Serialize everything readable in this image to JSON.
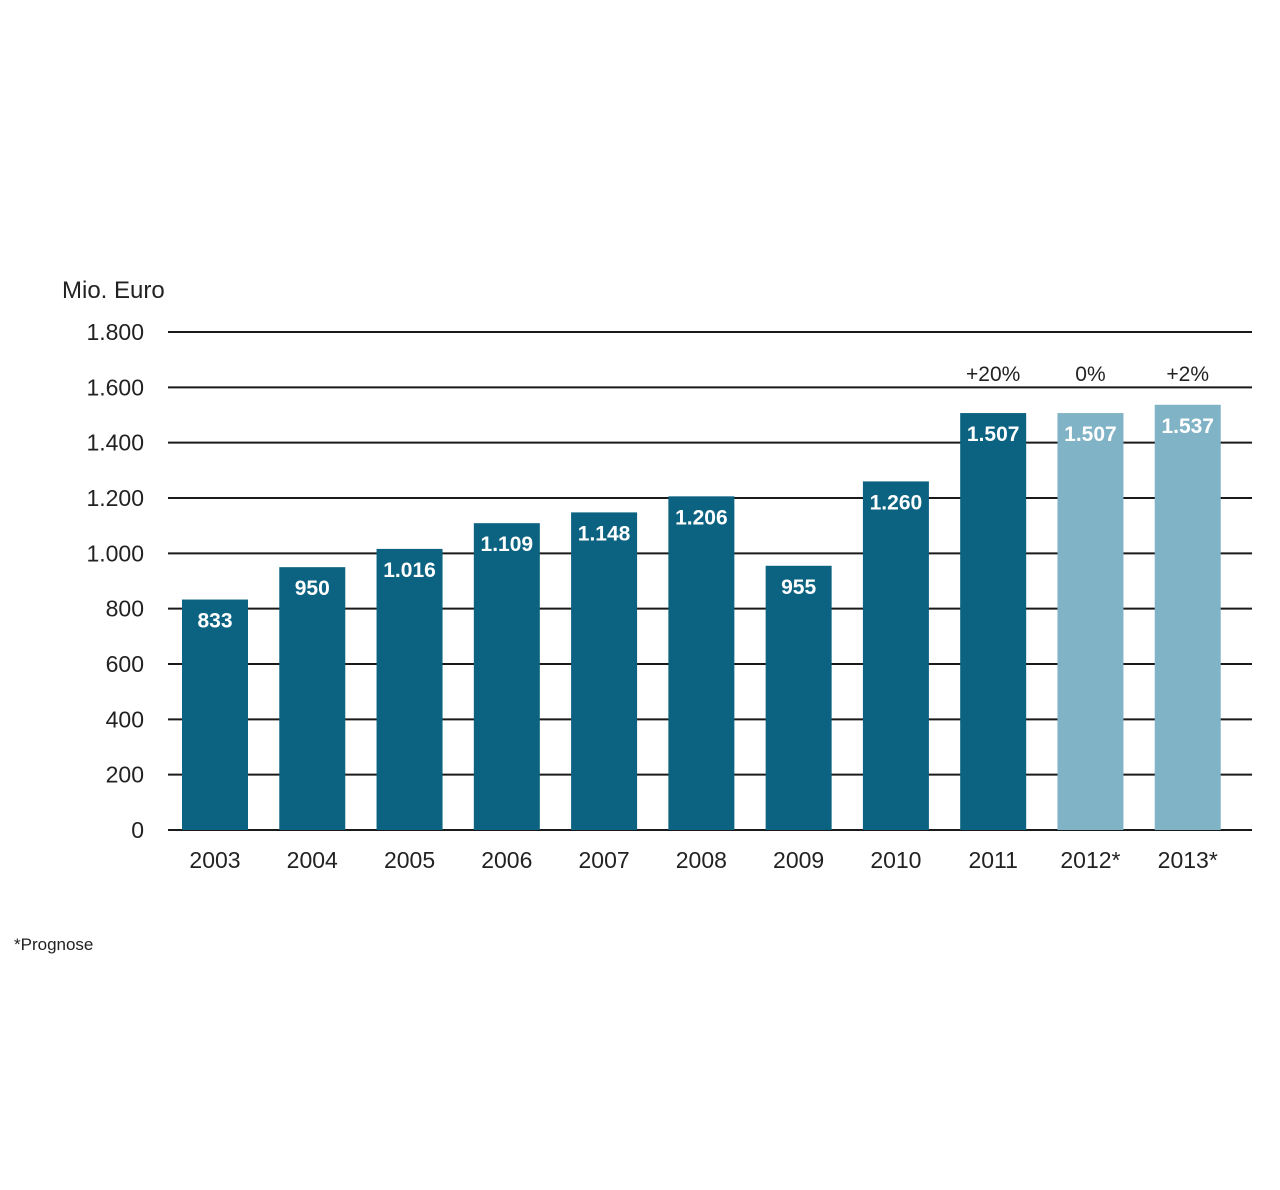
{
  "chart_data": {
    "type": "bar",
    "ylabel": "Mio. Euro",
    "ylim": [
      0,
      1800
    ],
    "yticks": [
      0,
      200,
      400,
      600,
      800,
      1000,
      1200,
      1400,
      1600,
      1800
    ],
    "ytick_labels": [
      "0",
      "200",
      "400",
      "600",
      "800",
      "1.000",
      "1.200",
      "1.400",
      "1.600",
      "1.800"
    ],
    "grid": true,
    "categories": [
      "2003",
      "2004",
      "2005",
      "2006",
      "2007",
      "2008",
      "2009",
      "2010",
      "2011",
      "2012*",
      "2013*"
    ],
    "values": [
      833,
      950,
      1016,
      1109,
      1148,
      1206,
      955,
      1260,
      1507,
      1507,
      1537
    ],
    "value_labels": [
      "833",
      "950",
      "1.016",
      "1.109",
      "1.148",
      "1.206",
      "955",
      "1.260",
      "1.507",
      "1.507",
      "1.537"
    ],
    "forecast": [
      false,
      false,
      false,
      false,
      false,
      false,
      false,
      false,
      false,
      true,
      true
    ],
    "annotations": [
      {
        "category": "2011",
        "text": "+20%"
      },
      {
        "category": "2012*",
        "text": "0%"
      },
      {
        "category": "2013*",
        "text": "+2%"
      }
    ],
    "colors": {
      "actual": "#0c6381",
      "forecast": "#80b3c5",
      "gridline": "#1a1a1a"
    },
    "footnote": "*Prognose"
  }
}
